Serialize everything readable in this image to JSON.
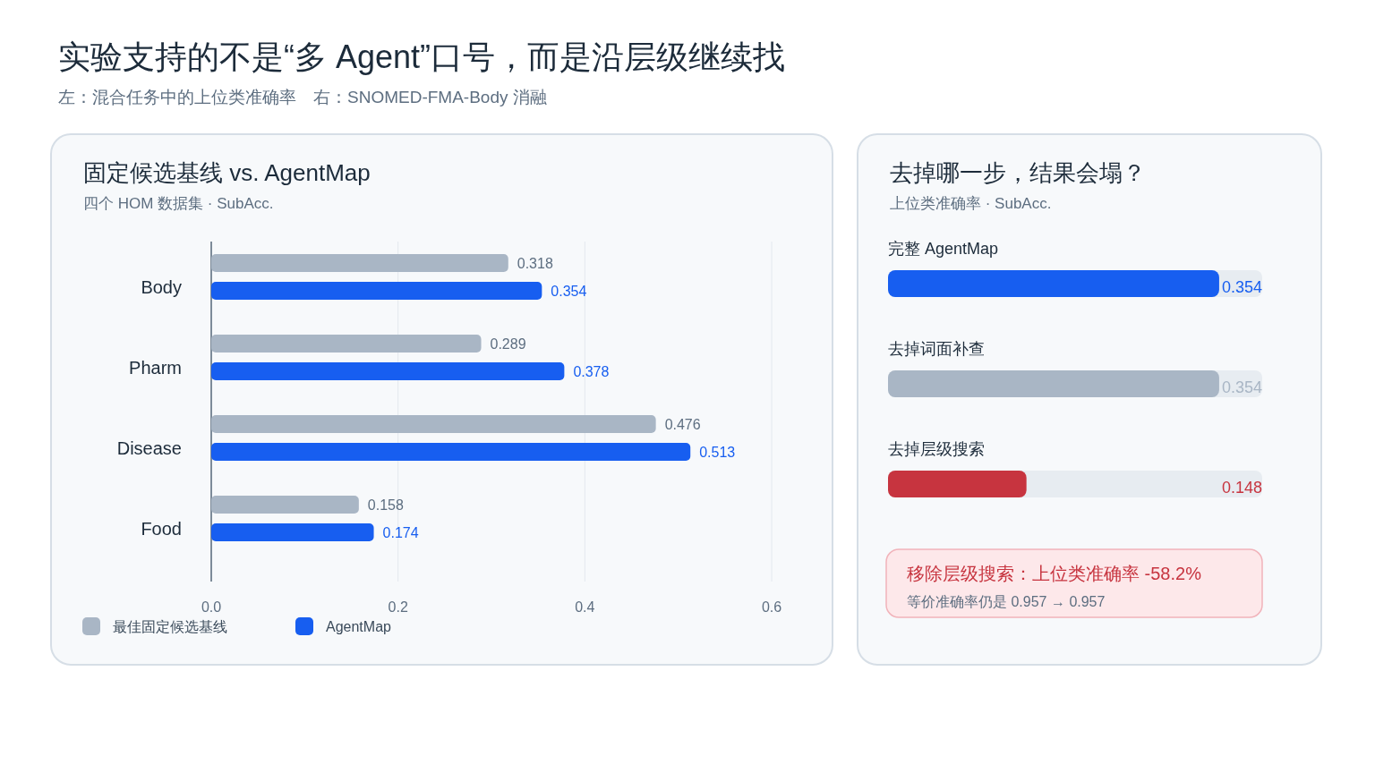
{
  "chart_data": [
    {
      "type": "bar",
      "orientation": "horizontal",
      "title": "固定候选基线 vs. AgentMap",
      "subtitle": "四个 HOM 数据集 · SubAcc.",
      "annotations": [
        "实验支持的不是“多 Agent”口号，而是沿层级继续找",
        "左：混合任务中的上位类准确率　右：SNOMED-FMA-Body 消融"
      ],
      "categories": [
        "Body",
        "Pharm",
        "Disease",
        "Food"
      ],
      "series": [
        {
          "name": "最佳固定候选基线",
          "color": "#a9b6c5",
          "values": [
            0.318,
            0.289,
            0.476,
            0.158
          ]
        },
        {
          "name": "AgentMap",
          "color": "#175ef0",
          "values": [
            0.354,
            0.378,
            0.513,
            0.174
          ]
        }
      ],
      "xlim": [
        0,
        0.6
      ],
      "xticks": [
        {
          "value": 0,
          "label": "0.0"
        },
        0.2,
        0.4,
        0.6
      ],
      "grid": "x",
      "legend": "bottom left",
      "data_labels": true
    },
    {
      "type": "bar",
      "orientation": "horizontal",
      "title": "去掉哪一步，结果会塌？",
      "subtitle": "上位类准确率 · SubAcc.",
      "categories": [
        "完整 AgentMap",
        "去掉词面补查",
        "去掉层级搜索"
      ],
      "values": [
        0.354,
        0.354,
        0.148
      ],
      "colors": [
        "#175ef0",
        "#a9b6c5",
        "#c7343f"
      ],
      "data_labels": true,
      "annotations": [
        "移除层级搜索：上位类准确率 -58.2%",
        "等价准确率仍是 0.957 → 0.957"
      ]
    }
  ]
}
